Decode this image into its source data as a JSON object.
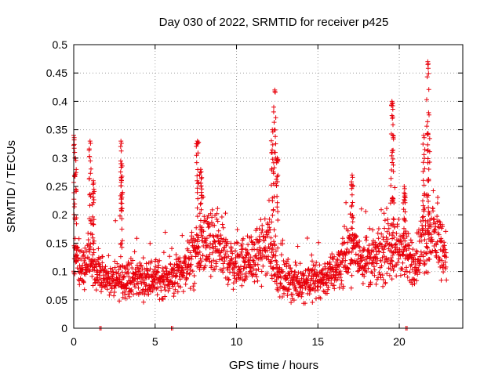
{
  "chart_data": {
    "type": "scatter",
    "title": "Day 030 of 2022, SRMTID for receiver p425",
    "xlabel": "GPS time / hours",
    "ylabel": "SRMTID / TECUs",
    "xlim": [
      0,
      23.9
    ],
    "ylim": [
      0,
      0.5
    ],
    "x_ticks": [
      0,
      5,
      10,
      15,
      20
    ],
    "x_tick_labels": [
      "0",
      "5",
      "10",
      "15",
      "20"
    ],
    "y_ticks": [
      0,
      0.05,
      0.1,
      0.15,
      0.2,
      0.25,
      0.3,
      0.35,
      0.4,
      0.45,
      0.5
    ],
    "y_tick_labels": [
      "0",
      "0.05",
      "0.1",
      "0.15",
      "0.2",
      "0.25",
      "0.3",
      "0.35",
      "0.4",
      "0.45",
      "0.5"
    ],
    "grid": true,
    "marker": "+",
    "color": "#e8000b",
    "series": [
      {
        "name": "SRMTID",
        "trend": [
          [
            0.0,
            0.12
          ],
          [
            0.5,
            0.11
          ],
          [
            1.0,
            0.12
          ],
          [
            1.5,
            0.1
          ],
          [
            2.0,
            0.09
          ],
          [
            2.5,
            0.08
          ],
          [
            3.0,
            0.09
          ],
          [
            3.5,
            0.085
          ],
          [
            4.0,
            0.09
          ],
          [
            4.5,
            0.085
          ],
          [
            5.0,
            0.09
          ],
          [
            5.5,
            0.085
          ],
          [
            6.0,
            0.09
          ],
          [
            6.5,
            0.1
          ],
          [
            7.0,
            0.11
          ],
          [
            7.5,
            0.13
          ],
          [
            8.0,
            0.15
          ],
          [
            8.5,
            0.14
          ],
          [
            9.0,
            0.14
          ],
          [
            9.5,
            0.12
          ],
          [
            10.0,
            0.11
          ],
          [
            10.5,
            0.12
          ],
          [
            11.0,
            0.12
          ],
          [
            11.5,
            0.13
          ],
          [
            12.0,
            0.15
          ],
          [
            12.5,
            0.1
          ],
          [
            13.0,
            0.08
          ],
          [
            13.5,
            0.08
          ],
          [
            14.0,
            0.08
          ],
          [
            14.5,
            0.085
          ],
          [
            15.0,
            0.085
          ],
          [
            15.5,
            0.09
          ],
          [
            16.0,
            0.1
          ],
          [
            16.5,
            0.12
          ],
          [
            17.0,
            0.14
          ],
          [
            17.5,
            0.13
          ],
          [
            18.0,
            0.12
          ],
          [
            18.5,
            0.12
          ],
          [
            19.0,
            0.13
          ],
          [
            19.5,
            0.14
          ],
          [
            20.0,
            0.14
          ],
          [
            20.5,
            0.12
          ],
          [
            21.0,
            0.12
          ],
          [
            21.5,
            0.15
          ],
          [
            22.0,
            0.17
          ],
          [
            22.5,
            0.15
          ],
          [
            22.9,
            0.13
          ]
        ],
        "peaks": [
          [
            0.0,
            0.34
          ],
          [
            0.1,
            0.3
          ],
          [
            1.0,
            0.33
          ],
          [
            1.2,
            0.26
          ],
          [
            2.9,
            0.33
          ],
          [
            2.95,
            0.29
          ],
          [
            7.6,
            0.33
          ],
          [
            7.8,
            0.28
          ],
          [
            12.2,
            0.35
          ],
          [
            12.35,
            0.42
          ],
          [
            12.5,
            0.3
          ],
          [
            17.1,
            0.27
          ],
          [
            19.55,
            0.4
          ],
          [
            19.6,
            0.34
          ],
          [
            20.3,
            0.25
          ],
          [
            21.5,
            0.34
          ],
          [
            21.75,
            0.47
          ],
          [
            21.8,
            0.38
          ]
        ]
      }
    ],
    "zero_markers_x": [
      1.6,
      6.0,
      20.4
    ]
  }
}
